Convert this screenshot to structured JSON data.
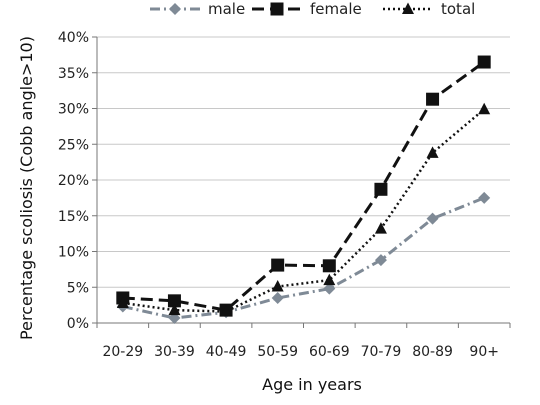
{
  "chart_data": {
    "type": "line",
    "categories": [
      "20-29",
      "30-39",
      "40-49",
      "50-59",
      "60-69",
      "70-79",
      "80-89",
      "90+"
    ],
    "ylim": [
      0,
      40
    ],
    "yticks": [
      0,
      5,
      10,
      15,
      20,
      25,
      30,
      35,
      40
    ],
    "ytick_labels": [
      "0%",
      "5%",
      "10%",
      "15%",
      "20%",
      "25%",
      "30%",
      "35%",
      "40%"
    ],
    "xlabel": "Age in years",
    "ylabel": "Percentage scoliosis (Cobb angle>10)",
    "grid": "horizontal",
    "legend_position": "top",
    "series": [
      {
        "name": "male",
        "values": [
          2.3,
          0.7,
          1.5,
          3.5,
          4.8,
          8.8,
          14.6,
          17.5
        ],
        "color": "#7f8a96",
        "dash": "dash-dot",
        "marker": "diamond"
      },
      {
        "name": "female",
        "values": [
          3.5,
          3.1,
          1.8,
          8.1,
          8.0,
          18.7,
          31.3,
          36.5
        ],
        "color": "#111111",
        "dash": "long-dash",
        "marker": "square"
      },
      {
        "name": "total",
        "values": [
          2.8,
          1.8,
          1.6,
          5.1,
          6.0,
          13.2,
          23.8,
          29.9
        ],
        "color": "#111111",
        "dash": "dotted",
        "marker": "triangle"
      }
    ]
  }
}
